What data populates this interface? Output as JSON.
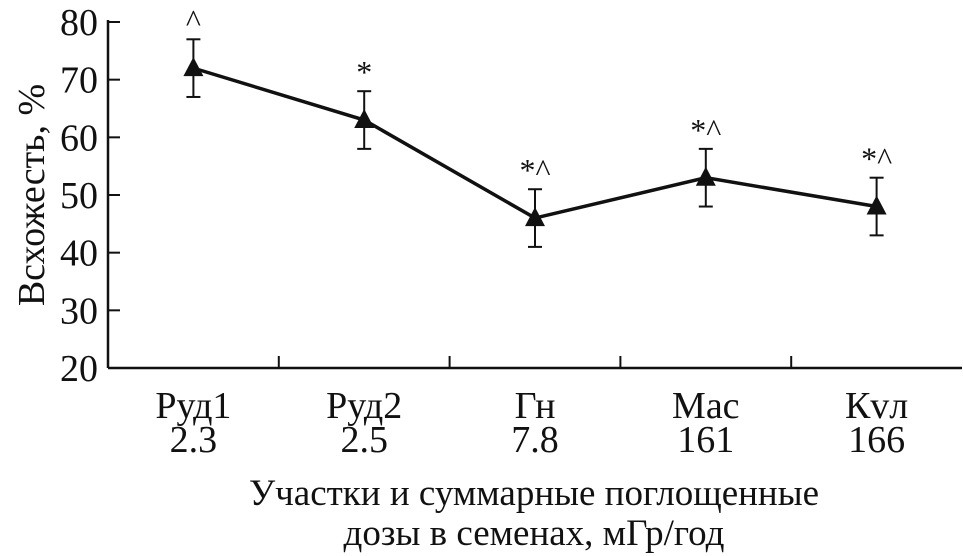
{
  "chart_data": {
    "type": "line",
    "title": "",
    "xlabel_lines": [
      "Участки и суммарные поглощенные",
      "дозы в семенах, мГр/год"
    ],
    "ylabel": "Всхожесть, %",
    "ylim": [
      20,
      80
    ],
    "yticks": [
      20,
      30,
      40,
      50,
      60,
      70,
      80
    ],
    "categories": [
      "Руд1",
      "Руд2",
      "Гн",
      "Мас",
      "Кvл"
    ],
    "doses": [
      "2.3",
      "2.5",
      "7.8",
      "161",
      "166"
    ],
    "series": [
      {
        "name": "Всхожесть",
        "marker": "triangle",
        "color": "#111111",
        "values": [
          72,
          63,
          46,
          53,
          48
        ],
        "errors": [
          5,
          5,
          5,
          5,
          5
        ]
      }
    ],
    "annotations": [
      "^",
      "*",
      "*^",
      "*^",
      "*^"
    ],
    "grid": false
  }
}
